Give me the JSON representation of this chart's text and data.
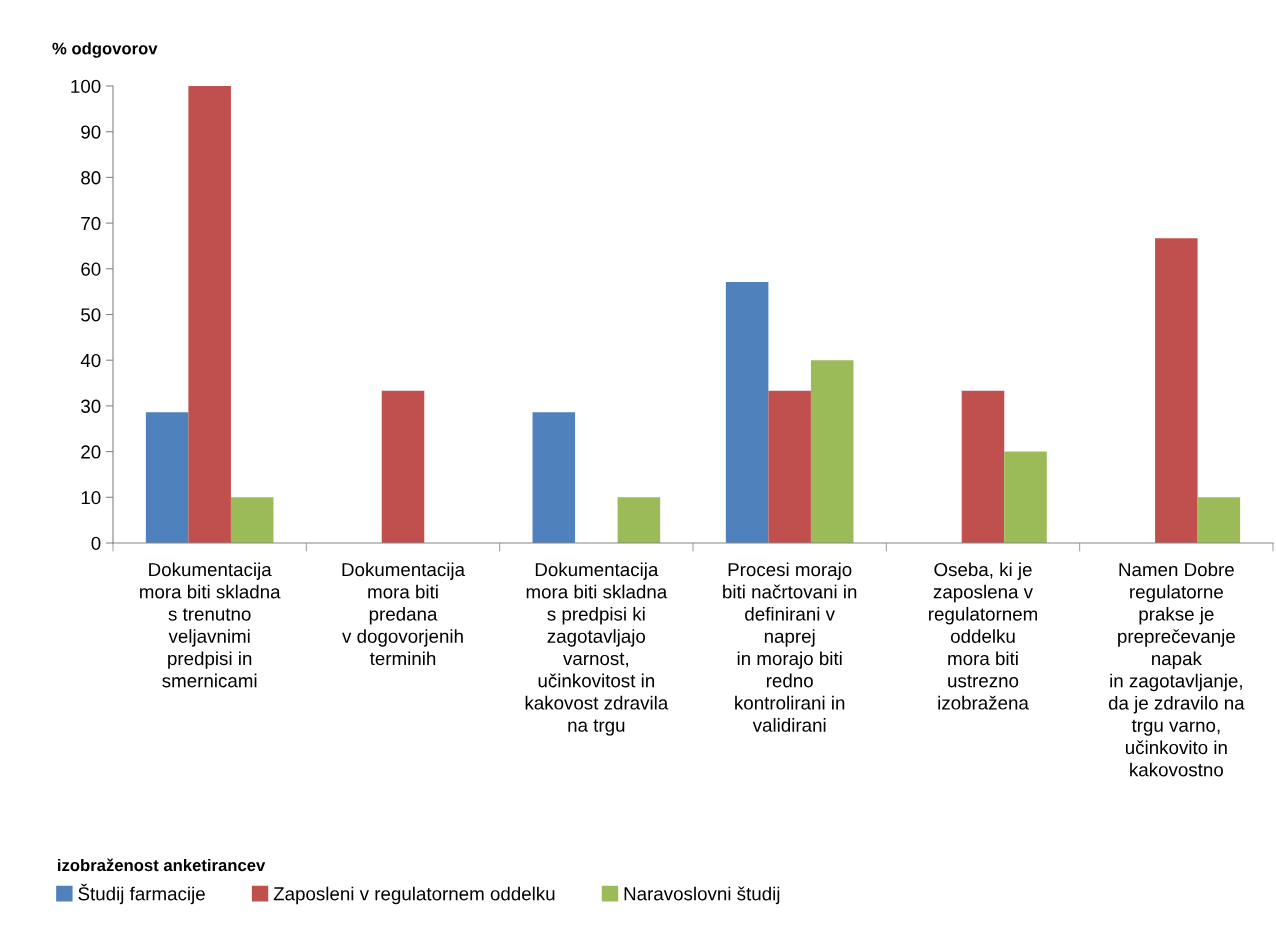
{
  "chart_data": {
    "type": "bar",
    "ylabel": "% odgovorov",
    "legend_title": "izobraženost anketirancev",
    "categories": [
      "Dokumentacija\nmora biti skladna\ns trenutno\nveljavnimi\npredpisi in\nsmernicami",
      "Dokumentacija\nmora biti\npredana\nv dogovorjenih\nterminih",
      "Dokumentacija\nmora biti skladna\ns predpisi ki\nzagotavljajo\nvarnost,\nučinkovitost in\nkakovost zdravila\nna trgu",
      "Procesi morajo\nbiti načrtovani in\ndefinirani v\nnaprej\nin morajo biti\nredno\nkontrolirani in\nvalidirani",
      "Oseba, ki je\nzaposlena v\nregulatornem\noddelku\nmora biti\nustrezno\nizobražena",
      "Namen Dobre\nregulatorne\nprakse je\npreprečevanje\nnapak\nin zagotavljanje,\nda je zdravilo na\ntrgu varno,\nučinkovito in\nkakovostno"
    ],
    "series": [
      {
        "name": "Študij farmacije",
        "color": "#4f81bd",
        "values": [
          28.6,
          0,
          28.6,
          57.1,
          0,
          0
        ]
      },
      {
        "name": "Zaposleni v regulatornem oddelku",
        "color": "#c0504d",
        "values": [
          100,
          33.3,
          0,
          33.3,
          33.3,
          66.7
        ]
      },
      {
        "name": "Naravoslovni študij",
        "color": "#9bbb59",
        "values": [
          10,
          0,
          10,
          40,
          20,
          10
        ]
      }
    ],
    "ylim": [
      0,
      100
    ],
    "yticks": [
      0,
      10,
      20,
      30,
      40,
      50,
      60,
      70,
      80,
      90,
      100
    ],
    "grid": false,
    "legend": "bottom left"
  }
}
